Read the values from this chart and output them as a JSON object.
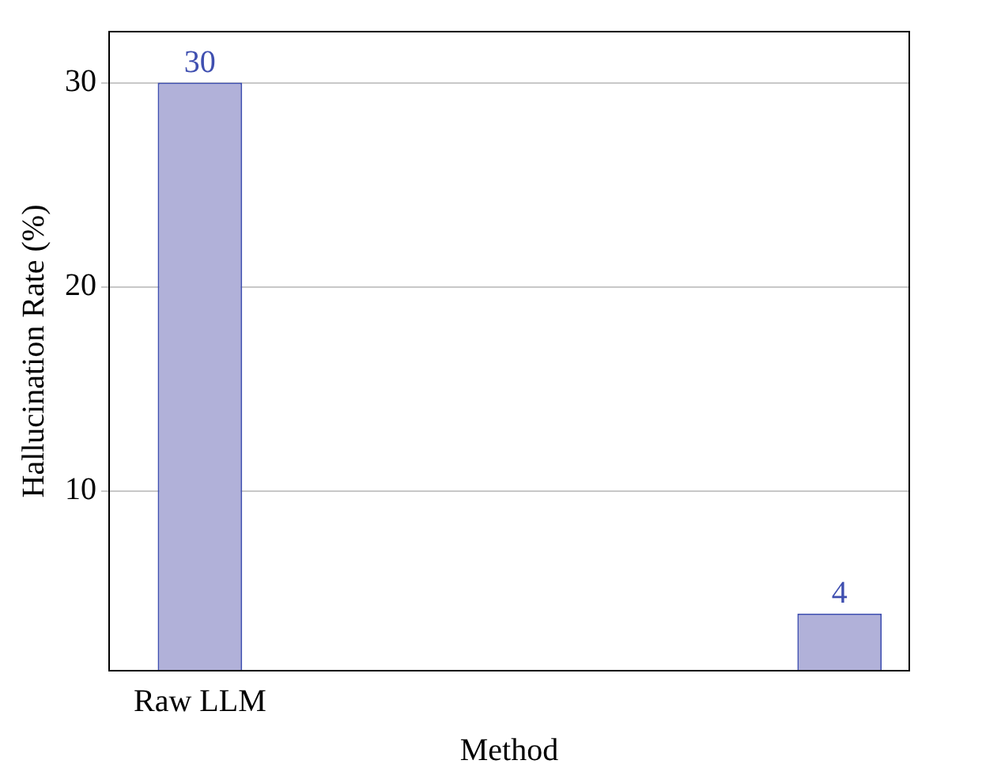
{
  "chart_data": {
    "type": "bar",
    "xlabel": "Method",
    "ylabel": "Hallucination Rate (%)",
    "categories": [
      "Raw LLM",
      null
    ],
    "series": [
      {
        "color": "#b1b1d9",
        "values": [
          30,
          4
        ]
      }
    ],
    "ylim": [
      1.2,
      32.5
    ],
    "yticks": [
      10,
      20,
      30
    ],
    "grid": "y",
    "legend": false,
    "data_labels": true
  }
}
